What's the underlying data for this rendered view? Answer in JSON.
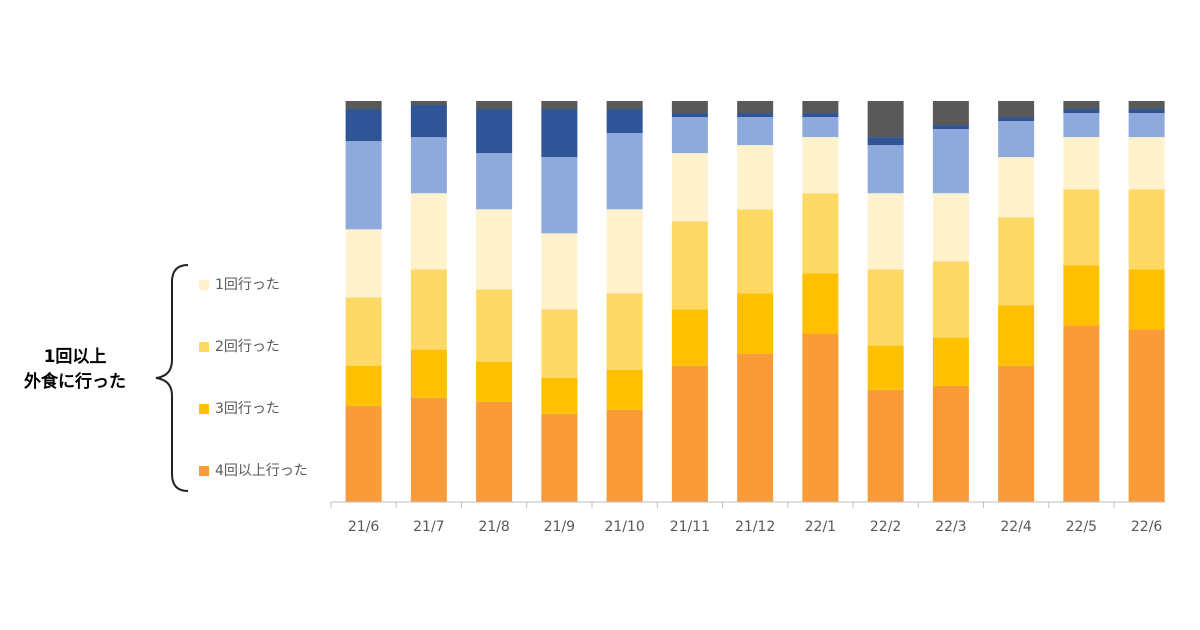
{
  "chart_data": {
    "type": "stacked_bar",
    "categories": [
      "21/6",
      "21/7",
      "21/8",
      "21/9",
      "21/10",
      "21/11",
      "21/12",
      "22/1",
      "22/2",
      "22/3",
      "22/4",
      "22/5",
      "22/6"
    ],
    "series": [
      {
        "name": "4回以上行った",
        "color": "#F89B38",
        "values": [
          24,
          26,
          25,
          22,
          23,
          34,
          37,
          42,
          28,
          29,
          34,
          44,
          43
        ]
      },
      {
        "name": "3回行った",
        "color": "#FFC000",
        "values": [
          10,
          12,
          10,
          9,
          10,
          14,
          15,
          15,
          11,
          12,
          15,
          15,
          15
        ]
      },
      {
        "name": "2回行った",
        "color": "#FFD966",
        "values": [
          17,
          20,
          18,
          17,
          19,
          22,
          21,
          20,
          19,
          19,
          22,
          19,
          20
        ]
      },
      {
        "name": "1回行った",
        "color": "#FFF2CC",
        "values": [
          17,
          19,
          20,
          19,
          21,
          17,
          16,
          14,
          19,
          17,
          15,
          13,
          13
        ]
      },
      {
        "color": "#8EA9DB",
        "values": [
          22,
          14,
          14,
          19,
          19,
          9,
          7,
          5,
          12,
          16,
          9,
          6,
          6
        ]
      },
      {
        "color": "#2F5597",
        "values": [
          8,
          8,
          11,
          12,
          6,
          1,
          1,
          1,
          2,
          1,
          1,
          1,
          1
        ]
      },
      {
        "color": "#595959",
        "values": [
          2,
          1,
          2,
          2,
          2,
          3,
          3,
          3,
          9,
          6,
          4,
          2,
          2
        ]
      }
    ],
    "ylim": [
      0,
      100
    ],
    "annotation": [
      "1回以上",
      "外食に行った"
    ]
  }
}
